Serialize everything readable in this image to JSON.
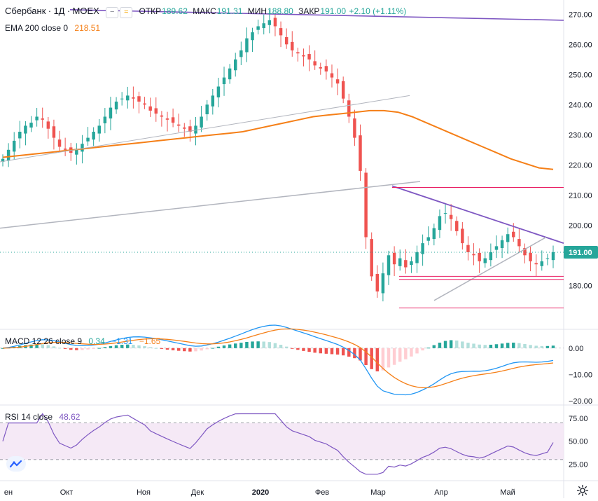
{
  "symbol": {
    "name": "Сбербанк",
    "interval": "1Д",
    "exchange": "MOEX",
    "open_label": "ОТКР",
    "open": "189.62",
    "high_label": "МАКС",
    "high": "191.31",
    "low_label": "МИН",
    "low": "188.80",
    "close_label": "ЗАКР",
    "close": "191.00",
    "change": "+2.10 (+1.11%)"
  },
  "toggles": {
    "minus": "−",
    "wave": "≈"
  },
  "ema": {
    "label": "EMA 200 close 0",
    "value": "218.51",
    "color": "#f57f17"
  },
  "macd": {
    "label": "MACD 12 26 close 9",
    "hist": "0.34",
    "macd": "−1.31",
    "signal": "−1.65"
  },
  "rsi": {
    "label": "RSI 14 close",
    "value": "48.62"
  },
  "price_tag": "191.00",
  "colors": {
    "up": "#26a69a",
    "down": "#ef5350",
    "ema": "#f57f17",
    "macd": "#2196f3",
    "signal": "#f57f17",
    "rsi": "#7e57c2",
    "trend_purple": "#7e57c2",
    "trend_pink": "#e91e63",
    "trend_gray": "#b2b5be",
    "tag_bg": "#26a69a"
  },
  "icons": {
    "logo": "tradingview-logo-icon",
    "settings": "gear-icon"
  },
  "chart_data": [
    {
      "type": "candlestick",
      "title": "Сбербанк · 1Д · MOEX",
      "y_axis_ticks": [
        "270.00",
        "260.00",
        "250.00",
        "240.00",
        "230.00",
        "220.00",
        "210.00",
        "200.00",
        "190.00",
        "180.00"
      ],
      "x_axis_ticks": [
        "ен",
        "Окт",
        "Ноя",
        "Дек",
        "2020",
        "Фев",
        "Мар",
        "Апр",
        "Май"
      ],
      "ylim": [
        171.0,
        271.0
      ],
      "last_price": 191.0,
      "series": [
        {
          "name": "close",
          "values": [
            222,
            225,
            228,
            231,
            233,
            234,
            236,
            235,
            232,
            229,
            226,
            225,
            224,
            225,
            227,
            229,
            231,
            233,
            236,
            239,
            241,
            242,
            243,
            242,
            241,
            240,
            238,
            237,
            236,
            235,
            234,
            233,
            232,
            231,
            233,
            236,
            240,
            243,
            246,
            249,
            252,
            255,
            258,
            262,
            264,
            266,
            267,
            268,
            266,
            263,
            260,
            258,
            257,
            256,
            255,
            253,
            252,
            251,
            249,
            247,
            242,
            236,
            229,
            218,
            196,
            183,
            178,
            184,
            190,
            187,
            189,
            186,
            188,
            191,
            194,
            196,
            199,
            203,
            204,
            202,
            198,
            194,
            191,
            190,
            188,
            189,
            191,
            193,
            195,
            197,
            196,
            193,
            190,
            188,
            187,
            188,
            189,
            191
          ]
        },
        {
          "name": "EMA 200",
          "values": [
            222.5,
            223,
            223.5,
            224,
            224.5,
            225,
            225.5,
            226,
            226.5,
            227,
            227.5,
            228,
            228.5,
            229,
            229.5,
            230,
            230.5,
            231,
            232,
            233,
            234,
            235,
            236,
            236.5,
            237,
            237.5,
            238,
            238,
            237.5,
            236,
            234,
            232,
            230,
            228,
            226,
            224,
            222,
            220.5,
            219,
            218.5
          ]
        }
      ]
    },
    {
      "type": "macd",
      "y_axis_ticks": [
        "0.00",
        "−10.00",
        "−20.00"
      ],
      "ylim": [
        -20.5,
        5.0
      ],
      "last": {
        "histogram": 0.34,
        "macd": -1.31,
        "signal": -1.65
      }
    },
    {
      "type": "line",
      "title": "RSI 14",
      "y_axis_ticks": [
        "75.00",
        "50.00",
        "25.00"
      ],
      "ylim": [
        10,
        85
      ],
      "band": [
        30,
        70
      ],
      "last": 48.62
    }
  ]
}
